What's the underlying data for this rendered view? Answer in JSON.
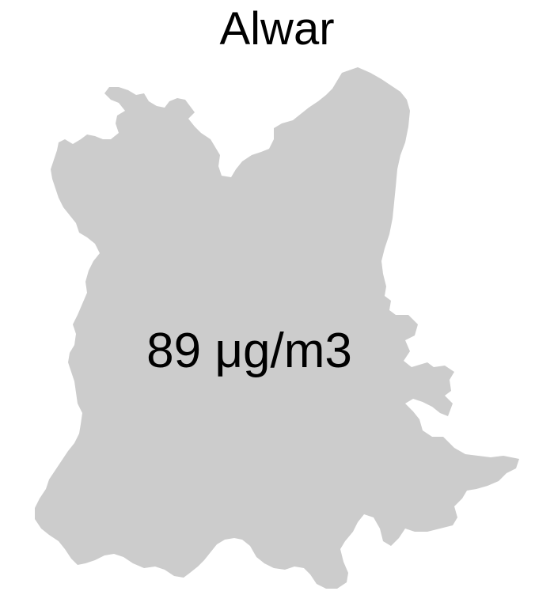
{
  "map": {
    "title": "Alwar",
    "value_label": "89 μg/m3",
    "region_fill": "#cccccc"
  }
}
